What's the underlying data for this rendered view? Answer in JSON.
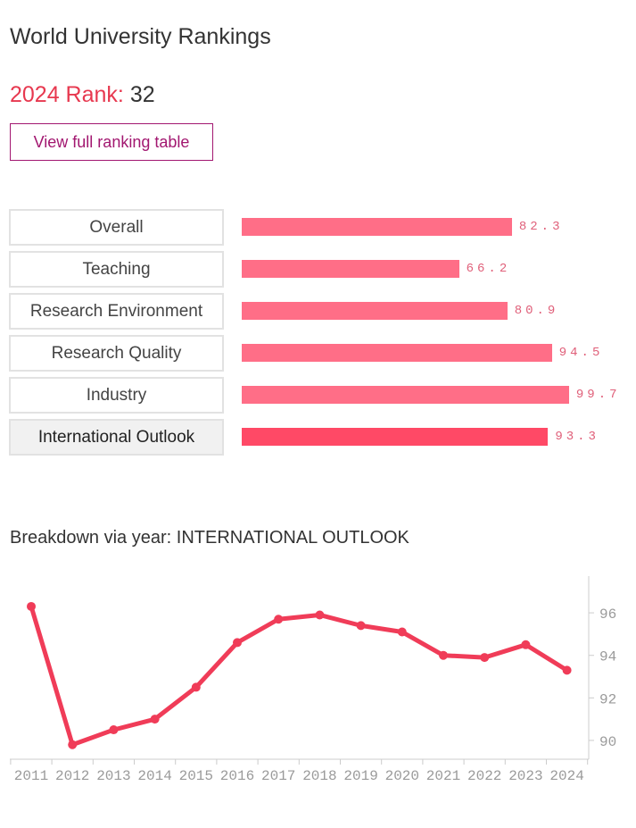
{
  "header": {
    "title": "World University Rankings"
  },
  "rank": {
    "label": "2024 Rank:",
    "value": "32"
  },
  "button": {
    "label": "View full ranking table"
  },
  "pillars": [
    {
      "label": "Overall",
      "value": "82.3",
      "score": 82.3
    },
    {
      "label": "Teaching",
      "value": "66.2",
      "score": 66.2
    },
    {
      "label": "Research Environment",
      "value": "80.9",
      "score": 80.9
    },
    {
      "label": "Research Quality",
      "value": "94.5",
      "score": 94.5
    },
    {
      "label": "Industry",
      "value": "99.7",
      "score": 99.7
    },
    {
      "label": "International Outlook",
      "value": "93.3",
      "score": 93.3,
      "selected": true
    }
  ],
  "colors": {
    "accent": "#e7384f",
    "bar": "#ff6e87",
    "bar_active": "#ff4966",
    "button": "#a21770",
    "line": "#f03c58"
  },
  "breakdown": {
    "title": "Breakdown via year: INTERNATIONAL OUTLOOK"
  },
  "chart_data": {
    "type": "line",
    "x": [
      "2011",
      "2012",
      "2013",
      "2014",
      "2015",
      "2016",
      "2017",
      "2018",
      "2019",
      "2020",
      "2021",
      "2022",
      "2023",
      "2024"
    ],
    "series": [
      {
        "values": [
          96.3,
          89.8,
          90.5,
          91.0,
          92.5,
          94.6,
          95.7,
          95.9,
          95.4,
          95.1,
          94.0,
          93.9,
          94.5,
          93.3
        ]
      }
    ],
    "yticks": [
      "90",
      "92",
      "94",
      "96"
    ],
    "ylim": [
      89.2,
      97.6
    ],
    "grid": false,
    "y_axis_side": "right"
  }
}
